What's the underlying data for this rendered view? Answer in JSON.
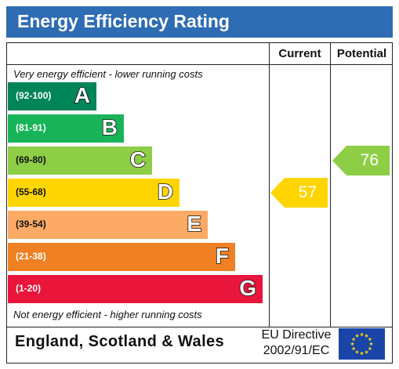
{
  "title": "Energy Efficiency Rating",
  "columns": {
    "current": "Current",
    "potential": "Potential"
  },
  "top_note": "Very energy efficient - lower running costs",
  "bottom_note": "Not energy efficient - higher running costs",
  "footer": {
    "country": "England, Scotland & Wales",
    "directive_line1": "EU Directive",
    "directive_line2": "2002/91/EC"
  },
  "colors": {
    "banner": "#2e6cb4",
    "eu_flag": "#1a44a8",
    "eu_stars": "#ffdd00"
  },
  "chart_data": {
    "type": "bar",
    "title": "Energy Efficiency Rating",
    "bands": [
      {
        "letter": "A",
        "range": "(92-100)",
        "min": 92,
        "max": 100,
        "color": "#00855a"
      },
      {
        "letter": "B",
        "range": "(81-91)",
        "min": 81,
        "max": 91,
        "color": "#19b459"
      },
      {
        "letter": "C",
        "range": "(69-80)",
        "min": 69,
        "max": 80,
        "color": "#8dce46"
      },
      {
        "letter": "D",
        "range": "(55-68)",
        "min": 55,
        "max": 68,
        "color": "#ffd500"
      },
      {
        "letter": "E",
        "range": "(39-54)",
        "min": 39,
        "max": 54,
        "color": "#fcaa65"
      },
      {
        "letter": "F",
        "range": "(21-38)",
        "min": 21,
        "max": 38,
        "color": "#ef8023"
      },
      {
        "letter": "G",
        "range": "(1-20)",
        "min": 1,
        "max": 20,
        "color": "#e9153b"
      }
    ],
    "current": {
      "label": "Current",
      "value": 57,
      "band": "D",
      "color": "#ffd500"
    },
    "potential": {
      "label": "Potential",
      "value": 76,
      "band": "C",
      "color": "#8dce46"
    }
  }
}
